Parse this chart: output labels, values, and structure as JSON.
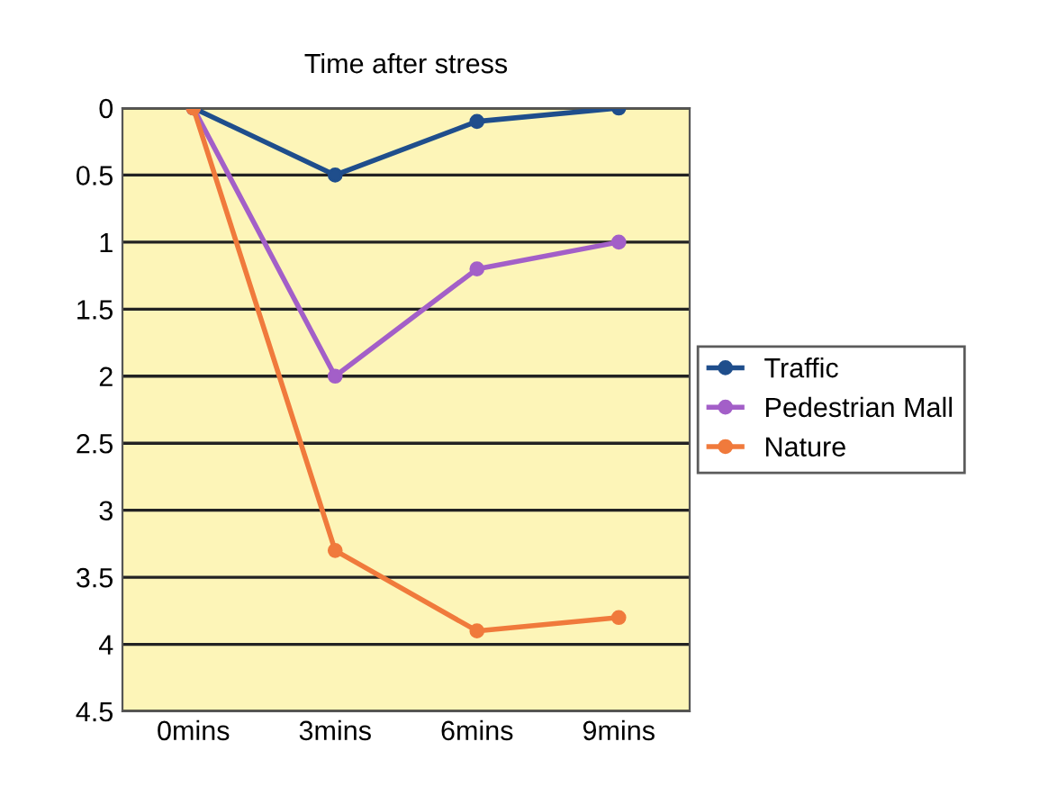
{
  "chart_data": {
    "type": "line",
    "title": "Time after stress",
    "categories": [
      "0mins",
      "3mins",
      "6mins",
      "9mins"
    ],
    "series": [
      {
        "name": "Traffic",
        "color": "#1f4e8c",
        "values": [
          0,
          0.5,
          0.1,
          0
        ]
      },
      {
        "name": "Pedestrian Mall",
        "color": "#a35fc8",
        "values": [
          0,
          2,
          1.2,
          1
        ]
      },
      {
        "name": "Nature",
        "color": "#f07a3c",
        "values": [
          0,
          3.3,
          3.9,
          3.8
        ]
      }
    ],
    "ylim": [
      4.5,
      0
    ],
    "yticks": [
      0,
      0.5,
      1,
      1.5,
      2,
      2.5,
      3,
      3.5,
      4,
      4.5
    ],
    "grid": "y",
    "legend": "right",
    "marker": "circle",
    "line_style": "solid"
  }
}
